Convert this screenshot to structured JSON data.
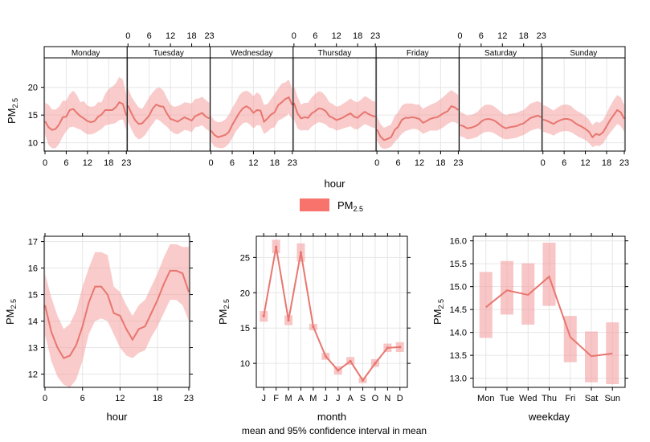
{
  "legend": {
    "label": "PM",
    "label_sub": "2.5",
    "color": "#f8736b"
  },
  "caption": "mean and 95% confidence interval in mean",
  "chart_data": [
    {
      "id": "day_hour",
      "type": "line",
      "xlabel": "hour",
      "ylabel": "PM",
      "ylabel_sub": "2.5",
      "ylim": [
        8.5,
        23
      ],
      "yticks": [
        10,
        15,
        20
      ],
      "xticks": [
        0,
        6,
        12,
        18,
        23
      ],
      "days": [
        "Monday",
        "Tuesday",
        "Wednesday",
        "Thursday",
        "Friday",
        "Saturday",
        "Sunday"
      ],
      "series": [
        {
          "mean": [
            13.9,
            12.8,
            12.3,
            12.5,
            13.3,
            14.6,
            14.7,
            15.9,
            16.1,
            15.4,
            14.8,
            14.4,
            13.9,
            13.7,
            13.9,
            14.7,
            15.1,
            15.9,
            15.9,
            15.9,
            16.4,
            17.3,
            17.0,
            14.9
          ],
          "lower": [
            11.6,
            9.6,
            9.0,
            9.0,
            9.8,
            11.1,
            12.1,
            12.8,
            12.9,
            12.6,
            12.4,
            11.9,
            11.5,
            11.5,
            11.7,
            12.1,
            12.5,
            13.1,
            13.3,
            13.4,
            13.6,
            14.1,
            14.2,
            12.3
          ],
          "upper": [
            17.2,
            16.9,
            16.0,
            16.0,
            16.5,
            17.6,
            17.6,
            18.8,
            19.4,
            18.6,
            17.3,
            17.5,
            16.7,
            16.5,
            16.6,
            17.3,
            17.3,
            18.8,
            19.7,
            20.1,
            20.7,
            21.9,
            21.4,
            18.7
          ]
        },
        {
          "mean": [
            16.7,
            15.3,
            14.1,
            13.4,
            13.5,
            14.2,
            14.9,
            16.2,
            16.9,
            16.6,
            16.5,
            15.3,
            14.3,
            14.1,
            13.8,
            14.2,
            14.6,
            14.3,
            14.0,
            14.8,
            15.1,
            15.4,
            14.7,
            14.4
          ],
          "lower": [
            13.8,
            12.4,
            11.2,
            10.6,
            10.9,
            11.5,
            12.6,
            13.4,
            14.3,
            14.0,
            13.4,
            12.9,
            12.2,
            11.7,
            11.5,
            11.9,
            12.3,
            12.2,
            11.9,
            12.8,
            12.9,
            13.2,
            12.5,
            12.1
          ],
          "upper": [
            19.9,
            18.3,
            17.3,
            16.4,
            16.1,
            17.1,
            18.2,
            19.1,
            19.8,
            20.0,
            19.4,
            18.1,
            16.9,
            16.5,
            16.6,
            16.9,
            17.3,
            17.2,
            17.1,
            17.9,
            18.0,
            18.3,
            17.7,
            17.2
          ]
        },
        {
          "mean": [
            12.2,
            11.4,
            11.0,
            11.2,
            11.4,
            11.9,
            13.2,
            14.3,
            15.4,
            16.2,
            16.6,
            16.2,
            15.4,
            15.9,
            15.8,
            13.8,
            14.4,
            15.1,
            15.5,
            16.8,
            17.3,
            17.9,
            18.2,
            16.8
          ],
          "lower": [
            10.2,
            9.3,
            9.1,
            9.0,
            9.2,
            9.8,
            10.8,
            12.0,
            12.8,
            13.5,
            13.7,
            13.3,
            12.6,
            13.2,
            13.1,
            11.6,
            12.0,
            12.6,
            12.8,
            14.0,
            14.3,
            14.7,
            15.3,
            14.1
          ],
          "upper": [
            14.9,
            14.0,
            13.7,
            13.8,
            14.2,
            15.0,
            16.3,
            17.3,
            18.6,
            19.2,
            19.4,
            19.1,
            18.4,
            19.1,
            18.6,
            16.8,
            17.0,
            17.9,
            18.8,
            19.8,
            20.7,
            20.9,
            21.4,
            19.7
          ]
        },
        {
          "mean": [
            17.2,
            15.3,
            14.4,
            14.6,
            14.5,
            15.3,
            15.7,
            16.2,
            16.1,
            15.7,
            14.8,
            14.5,
            14.1,
            14.3,
            14.6,
            15.0,
            15.3,
            14.7,
            14.5,
            15.1,
            15.6,
            15.2,
            14.9,
            14.7
          ],
          "lower": [
            14.3,
            12.6,
            12.2,
            12.3,
            12.2,
            12.9,
            13.4,
            13.7,
            13.6,
            13.3,
            12.7,
            12.6,
            12.2,
            12.4,
            12.6,
            12.8,
            13.0,
            12.5,
            12.4,
            12.9,
            13.4,
            13.1,
            12.8,
            12.6
          ],
          "upper": [
            20.3,
            18.3,
            16.9,
            17.2,
            17.2,
            18.2,
            18.8,
            19.3,
            19.1,
            18.4,
            17.3,
            17.0,
            16.5,
            16.7,
            17.1,
            17.5,
            18.0,
            17.5,
            17.3,
            17.8,
            18.4,
            18.1,
            17.6,
            17.4
          ]
        },
        {
          "mean": [
            12.4,
            11.1,
            10.5,
            10.7,
            11.0,
            12.3,
            12.9,
            14.1,
            14.5,
            14.5,
            14.6,
            14.5,
            14.3,
            13.6,
            13.9,
            14.3,
            14.5,
            14.6,
            15.0,
            15.4,
            15.7,
            16.6,
            16.4,
            15.9
          ],
          "lower": [
            10.5,
            9.2,
            8.9,
            9.0,
            9.3,
            10.1,
            10.8,
            11.6,
            12.1,
            12.3,
            12.5,
            12.5,
            12.2,
            11.6,
            11.9,
            12.2,
            12.2,
            12.2,
            12.5,
            12.9,
            13.4,
            13.8,
            13.7,
            13.4
          ],
          "upper": [
            14.8,
            13.4,
            12.7,
            13.0,
            13.3,
            14.8,
            15.5,
            16.7,
            17.1,
            17.1,
            17.1,
            16.9,
            16.9,
            16.1,
            16.5,
            16.8,
            17.1,
            17.4,
            17.9,
            18.4,
            19.0,
            19.5,
            19.1,
            18.6
          ]
        },
        {
          "mean": [
            13.2,
            13.0,
            12.6,
            12.7,
            12.9,
            13.2,
            13.8,
            14.2,
            14.3,
            14.2,
            13.9,
            13.4,
            12.9,
            12.6,
            12.8,
            12.9,
            13.0,
            13.3,
            13.5,
            14.0,
            14.5,
            14.7,
            14.9,
            14.6
          ],
          "lower": [
            11.2,
            11.0,
            10.6,
            10.7,
            10.9,
            11.1,
            11.6,
            11.9,
            12.0,
            11.9,
            11.6,
            11.2,
            10.8,
            10.6,
            10.7,
            10.8,
            10.9,
            11.2,
            11.4,
            11.8,
            12.2,
            12.4,
            12.6,
            12.4
          ],
          "upper": [
            15.6,
            15.3,
            14.9,
            15.0,
            15.2,
            15.6,
            16.3,
            16.8,
            16.9,
            16.8,
            16.4,
            15.9,
            15.3,
            15.0,
            15.2,
            15.3,
            15.4,
            15.7,
            15.9,
            16.5,
            17.1,
            17.3,
            17.5,
            17.2
          ]
        },
        {
          "mean": [
            14.2,
            14.0,
            13.7,
            13.4,
            13.8,
            14.1,
            14.3,
            14.3,
            14.1,
            13.6,
            13.2,
            12.9,
            12.5,
            12.0,
            11.0,
            11.6,
            11.4,
            11.9,
            13.0,
            14.1,
            15.0,
            15.9,
            15.5,
            14.3
          ],
          "lower": [
            12.0,
            11.8,
            11.6,
            11.3,
            11.7,
            12.0,
            12.1,
            12.1,
            11.9,
            11.5,
            11.1,
            10.8,
            10.5,
            10.0,
            9.2,
            9.5,
            9.4,
            9.9,
            10.9,
            11.8,
            12.6,
            13.4,
            13.0,
            12.0
          ],
          "upper": [
            16.8,
            16.6,
            16.2,
            15.8,
            16.3,
            16.7,
            16.9,
            16.9,
            16.6,
            16.0,
            15.6,
            15.3,
            14.8,
            14.2,
            13.2,
            13.8,
            13.6,
            14.1,
            15.3,
            16.6,
            17.7,
            18.6,
            18.2,
            16.8
          ]
        }
      ]
    },
    {
      "id": "hour",
      "type": "line",
      "xlabel": "hour",
      "ylabel": "PM",
      "ylabel_sub": "2.5",
      "ylim": [
        11.5,
        17.2
      ],
      "yticks": [
        12,
        13,
        14,
        15,
        16,
        17
      ],
      "xticks": [
        0,
        6,
        12,
        18,
        23
      ],
      "x": [
        0,
        1,
        2,
        3,
        4,
        5,
        6,
        7,
        8,
        9,
        10,
        11,
        12,
        13,
        14,
        15,
        16,
        17,
        18,
        19,
        20,
        21,
        22,
        23
      ],
      "mean": [
        14.6,
        13.6,
        13.0,
        12.6,
        12.7,
        13.1,
        13.8,
        14.7,
        15.3,
        15.3,
        15.0,
        14.3,
        14.2,
        13.7,
        13.3,
        13.7,
        13.8,
        14.3,
        14.8,
        15.4,
        15.9,
        15.9,
        15.8,
        15.1
      ],
      "lower": [
        13.5,
        12.5,
        11.9,
        11.6,
        11.5,
        11.8,
        12.5,
        13.5,
        14.0,
        14.1,
        14.0,
        13.5,
        13.0,
        12.7,
        12.6,
        12.8,
        12.9,
        13.4,
        13.8,
        14.3,
        14.8,
        14.8,
        14.6,
        14.0
      ],
      "upper": [
        15.8,
        14.9,
        14.2,
        13.7,
        13.9,
        14.4,
        15.3,
        16.0,
        16.6,
        16.6,
        16.5,
        15.3,
        15.1,
        14.6,
        14.2,
        14.6,
        14.8,
        15.3,
        15.8,
        16.4,
        16.9,
        16.9,
        16.8,
        16.8
      ]
    },
    {
      "id": "month",
      "type": "line",
      "xlabel": "month",
      "ylabel": "PM",
      "ylabel_sub": "2.5",
      "ylim": [
        6.6,
        28
      ],
      "yticks": [
        10,
        15,
        20,
        25
      ],
      "categories": [
        "J",
        "F",
        "M",
        "A",
        "M",
        "J",
        "J",
        "A",
        "S",
        "O",
        "N",
        "D"
      ],
      "mean": [
        16.7,
        26.5,
        16.1,
        25.7,
        15.2,
        11.0,
        9.0,
        10.3,
        7.6,
        10.0,
        12.2,
        12.3
      ],
      "lower": [
        15.9,
        25.6,
        15.4,
        24.4,
        14.7,
        10.5,
        8.4,
        9.8,
        7.2,
        9.5,
        11.6,
        11.6
      ],
      "upper": [
        17.4,
        27.5,
        16.8,
        27.0,
        15.6,
        11.5,
        9.6,
        10.9,
        8.0,
        10.6,
        12.8,
        13.0
      ]
    },
    {
      "id": "weekday",
      "type": "line",
      "xlabel": "weekday",
      "ylabel": "PM",
      "ylabel_sub": "2.5",
      "ylim": [
        12.8,
        16.1
      ],
      "yticks": [
        13.0,
        13.5,
        14.0,
        14.5,
        15.0,
        15.5,
        16.0
      ],
      "categories": [
        "Mon",
        "Tue",
        "Wed",
        "Thu",
        "Fri",
        "Sat",
        "Sun"
      ],
      "mean": [
        14.55,
        14.92,
        14.82,
        15.22,
        13.9,
        13.48,
        13.54
      ],
      "lower": [
        13.88,
        14.39,
        14.17,
        14.58,
        13.35,
        12.91,
        12.87
      ],
      "upper": [
        15.32,
        15.56,
        15.51,
        15.96,
        14.36,
        14.02,
        14.22
      ]
    }
  ]
}
